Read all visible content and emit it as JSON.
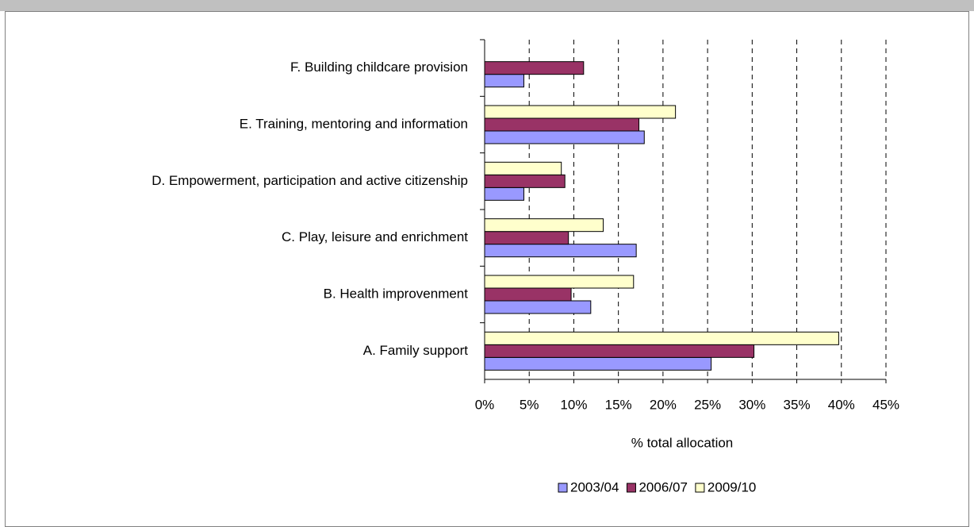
{
  "chart_data": {
    "type": "hbar",
    "categories": [
      "A. Family support",
      "B. Health improvenment",
      "C. Play, leisure and enrichment",
      "D. Empowerment, participation and active citizenship",
      "E. Training, mentoring and information",
      "F. Building childcare provision"
    ],
    "series": [
      {
        "name": "2003/04",
        "color": "#9999ff",
        "values": [
          25.4,
          11.9,
          17,
          4.4,
          17.9,
          4.4
        ]
      },
      {
        "name": "2006/07",
        "color": "#993366",
        "values": [
          30.2,
          9.7,
          9.4,
          9.0,
          17.3,
          11.1
        ]
      },
      {
        "name": "2009/10",
        "color": "#ffffcc",
        "values": [
          39.7,
          16.7,
          13.3,
          8.6,
          21.4,
          null
        ]
      }
    ],
    "xlabel": "% total allocation",
    "xlim": [
      0,
      45
    ],
    "xticks": [
      {
        "value": 0,
        "label": "0%"
      },
      {
        "value": 5,
        "label": "5%"
      },
      {
        "value": 10,
        "label": "10%"
      },
      {
        "value": 15,
        "label": "15%"
      },
      {
        "value": 20,
        "label": "20%"
      },
      {
        "value": 25,
        "label": "25%"
      },
      {
        "value": 30,
        "label": "30%"
      },
      {
        "value": 35,
        "label": "35%"
      },
      {
        "value": 40,
        "label": "40%"
      },
      {
        "value": 45,
        "label": "45%"
      }
    ],
    "grid": true,
    "legend": "bottom"
  }
}
